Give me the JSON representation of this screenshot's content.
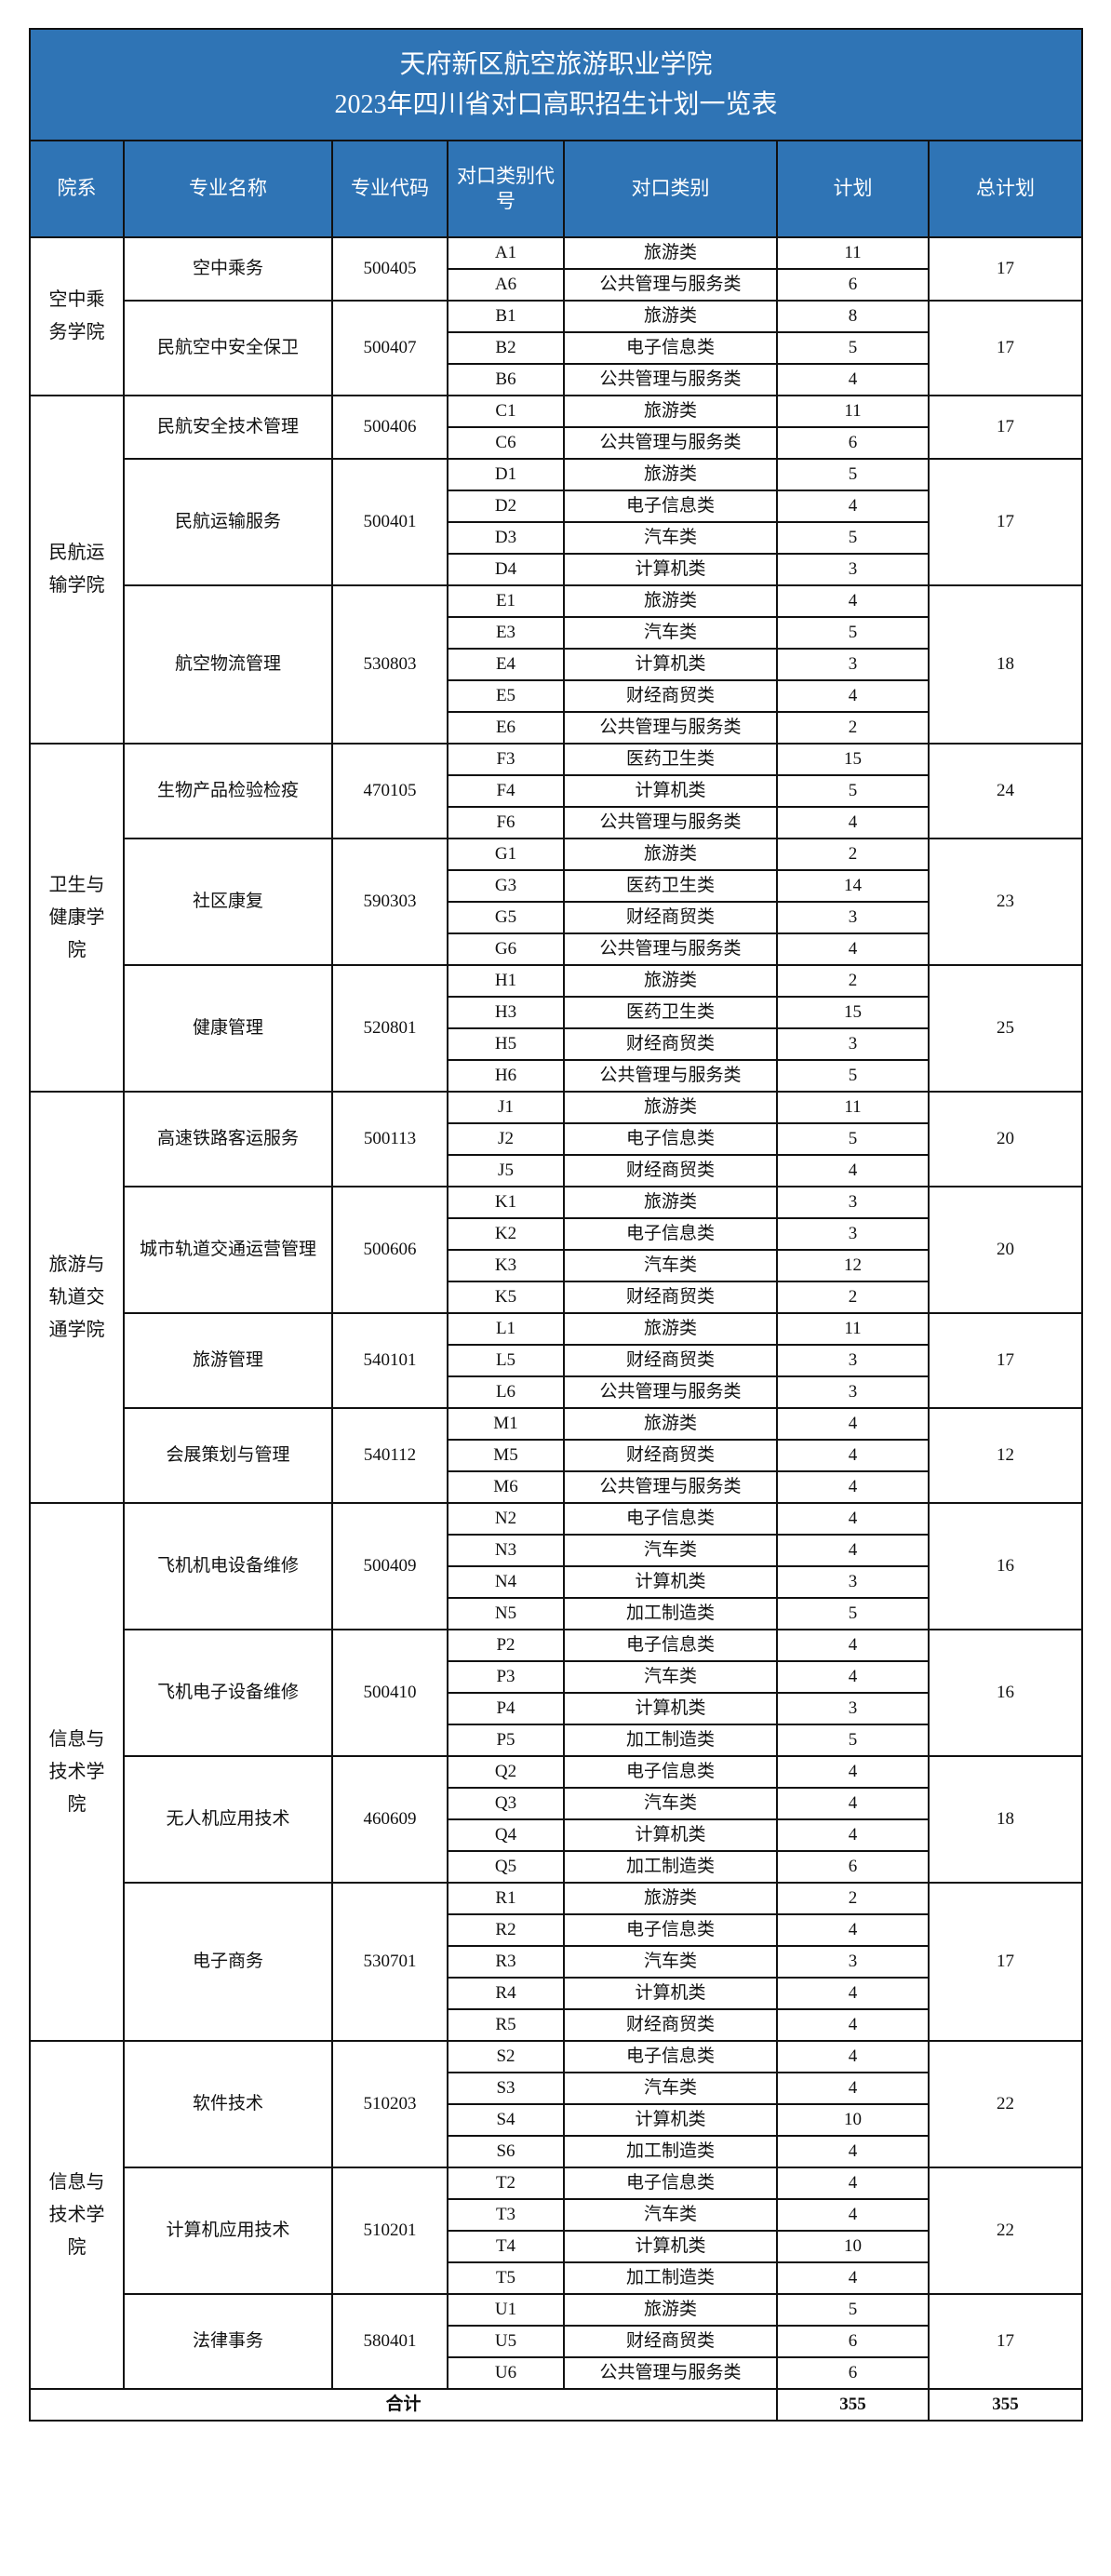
{
  "title_line1": "天府新区航空旅游职业学院",
  "title_line2": "2023年四川省对口高职招生计划一览表",
  "header_color": "#2f74b5",
  "columns": [
    "院系",
    "专业名称",
    "专业代码",
    "对口类别代号",
    "对口类别",
    "计划",
    "总计划"
  ],
  "departments": [
    {
      "name": "空中乘务学院",
      "majors": [
        {
          "name": "空中乘务",
          "code": "500405",
          "total": "17",
          "items": [
            [
              "A1",
              "旅游类",
              "11"
            ],
            [
              "A6",
              "公共管理与服务类",
              "6"
            ]
          ]
        },
        {
          "name": "民航空中安全保卫",
          "code": "500407",
          "total": "17",
          "items": [
            [
              "B1",
              "旅游类",
              "8"
            ],
            [
              "B2",
              "电子信息类",
              "5"
            ],
            [
              "B6",
              "公共管理与服务类",
              "4"
            ]
          ]
        }
      ]
    },
    {
      "name": "民航运输学院",
      "majors": [
        {
          "name": "民航安全技术管理",
          "code": "500406",
          "total": "17",
          "items": [
            [
              "C1",
              "旅游类",
              "11"
            ],
            [
              "C6",
              "公共管理与服务类",
              "6"
            ]
          ]
        },
        {
          "name": "民航运输服务",
          "code": "500401",
          "total": "17",
          "items": [
            [
              "D1",
              "旅游类",
              "5"
            ],
            [
              "D2",
              "电子信息类",
              "4"
            ],
            [
              "D3",
              "汽车类",
              "5"
            ],
            [
              "D4",
              "计算机类",
              "3"
            ]
          ]
        },
        {
          "name": "航空物流管理",
          "code": "530803",
          "total": "18",
          "items": [
            [
              "E1",
              "旅游类",
              "4"
            ],
            [
              "E3",
              "汽车类",
              "5"
            ],
            [
              "E4",
              "计算机类",
              "3"
            ],
            [
              "E5",
              "财经商贸类",
              "4"
            ],
            [
              "E6",
              "公共管理与服务类",
              "2"
            ]
          ]
        }
      ]
    },
    {
      "name": "卫生与健康学院",
      "majors": [
        {
          "name": "生物产品检验检疫",
          "code": "470105",
          "total": "24",
          "items": [
            [
              "F3",
              "医药卫生类",
              "15"
            ],
            [
              "F4",
              "计算机类",
              "5"
            ],
            [
              "F6",
              "公共管理与服务类",
              "4"
            ]
          ]
        },
        {
          "name": "社区康复",
          "code": "590303",
          "total": "23",
          "items": [
            [
              "G1",
              "旅游类",
              "2"
            ],
            [
              "G3",
              "医药卫生类",
              "14"
            ],
            [
              "G5",
              "财经商贸类",
              "3"
            ],
            [
              "G6",
              "公共管理与服务类",
              "4"
            ]
          ]
        },
        {
          "name": "健康管理",
          "code": "520801",
          "total": "25",
          "items": [
            [
              "H1",
              "旅游类",
              "2"
            ],
            [
              "H3",
              "医药卫生类",
              "15"
            ],
            [
              "H5",
              "财经商贸类",
              "3"
            ],
            [
              "H6",
              "公共管理与服务类",
              "5"
            ]
          ]
        }
      ]
    },
    {
      "name": "旅游与轨道交通学院",
      "majors": [
        {
          "name": "高速铁路客运服务",
          "code": "500113",
          "total": "20",
          "items": [
            [
              "J1",
              "旅游类",
              "11"
            ],
            [
              "J2",
              "电子信息类",
              "5"
            ],
            [
              "J5",
              "财经商贸类",
              "4"
            ]
          ]
        },
        {
          "name": "城市轨道交通运营管理",
          "code": "500606",
          "total": "20",
          "items": [
            [
              "K1",
              "旅游类",
              "3"
            ],
            [
              "K2",
              "电子信息类",
              "3"
            ],
            [
              "K3",
              "汽车类",
              "12"
            ],
            [
              "K5",
              "财经商贸类",
              "2"
            ]
          ]
        },
        {
          "name": "旅游管理",
          "code": "540101",
          "total": "17",
          "items": [
            [
              "L1",
              "旅游类",
              "11"
            ],
            [
              "L5",
              "财经商贸类",
              "3"
            ],
            [
              "L6",
              "公共管理与服务类",
              "3"
            ]
          ]
        },
        {
          "name": "会展策划与管理",
          "code": "540112",
          "total": "12",
          "items": [
            [
              "M1",
              "旅游类",
              "4"
            ],
            [
              "M5",
              "财经商贸类",
              "4"
            ],
            [
              "M6",
              "公共管理与服务类",
              "4"
            ]
          ]
        }
      ]
    },
    {
      "name": "信息与技术学院",
      "majors": [
        {
          "name": "飞机机电设备维修",
          "code": "500409",
          "total": "16",
          "items": [
            [
              "N2",
              "电子信息类",
              "4"
            ],
            [
              "N3",
              "汽车类",
              "4"
            ],
            [
              "N4",
              "计算机类",
              "3"
            ],
            [
              "N5",
              "加工制造类",
              "5"
            ]
          ]
        },
        {
          "name": "飞机电子设备维修",
          "code": "500410",
          "total": "16",
          "items": [
            [
              "P2",
              "电子信息类",
              "4"
            ],
            [
              "P3",
              "汽车类",
              "4"
            ],
            [
              "P4",
              "计算机类",
              "3"
            ],
            [
              "P5",
              "加工制造类",
              "5"
            ]
          ]
        },
        {
          "name": "无人机应用技术",
          "code": "460609",
          "total": "18",
          "items": [
            [
              "Q2",
              "电子信息类",
              "4"
            ],
            [
              "Q3",
              "汽车类",
              "4"
            ],
            [
              "Q4",
              "计算机类",
              "4"
            ],
            [
              "Q5",
              "加工制造类",
              "6"
            ]
          ]
        },
        {
          "name": "电子商务",
          "code": "530701",
          "total": "17",
          "items": [
            [
              "R1",
              "旅游类",
              "2"
            ],
            [
              "R2",
              "电子信息类",
              "4"
            ],
            [
              "R3",
              "汽车类",
              "3"
            ],
            [
              "R4",
              "计算机类",
              "4"
            ],
            [
              "R5",
              "财经商贸类",
              "4"
            ]
          ]
        }
      ]
    },
    {
      "name": "信息与技术学院",
      "majors": [
        {
          "name": "软件技术",
          "code": "510203",
          "total": "22",
          "items": [
            [
              "S2",
              "电子信息类",
              "4"
            ],
            [
              "S3",
              "汽车类",
              "4"
            ],
            [
              "S4",
              "计算机类",
              "10"
            ],
            [
              "S6",
              "加工制造类",
              "4"
            ]
          ]
        },
        {
          "name": "计算机应用技术",
          "code": "510201",
          "total": "22",
          "items": [
            [
              "T2",
              "电子信息类",
              "4"
            ],
            [
              "T3",
              "汽车类",
              "4"
            ],
            [
              "T4",
              "计算机类",
              "10"
            ],
            [
              "T5",
              "加工制造类",
              "4"
            ]
          ]
        },
        {
          "name": "法律事务",
          "code": "580401",
          "total": "17",
          "items": [
            [
              "U1",
              "旅游类",
              "5"
            ],
            [
              "U5",
              "财经商贸类",
              "6"
            ],
            [
              "U6",
              "公共管理与服务类",
              "6"
            ]
          ]
        }
      ]
    }
  ],
  "total": {
    "label": "合计",
    "plan": "355",
    "grand": "355"
  }
}
